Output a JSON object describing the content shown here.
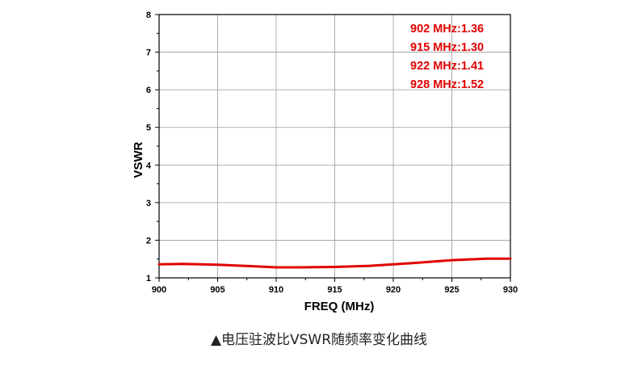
{
  "chart_data": {
    "type": "line",
    "xlabel": "FREQ (MHz)",
    "ylabel": "VSWR",
    "xlim": [
      900,
      930
    ],
    "ylim": [
      1,
      8
    ],
    "x_ticks": [
      900,
      905,
      910,
      915,
      920,
      925,
      930
    ],
    "y_ticks": [
      1,
      2,
      3,
      4,
      5,
      6,
      7,
      8
    ],
    "grid": true,
    "series": [
      {
        "color": "#e00000",
        "x": [
          900,
          902,
          905,
          908,
          910,
          912,
          915,
          918,
          920,
          922,
          925,
          928,
          930
        ],
        "y": [
          1.36,
          1.37,
          1.35,
          1.31,
          1.28,
          1.28,
          1.29,
          1.32,
          1.36,
          1.4,
          1.47,
          1.51,
          1.51
        ]
      }
    ],
    "annotations": [
      "902 MHz:1.36",
      "915 MHz:1.30",
      "922 MHz:1.41",
      "928 MHz:1.52"
    ],
    "annotation_color": "#e00000"
  },
  "caption": "▲电压驻波比VSWR随频率变化曲线"
}
